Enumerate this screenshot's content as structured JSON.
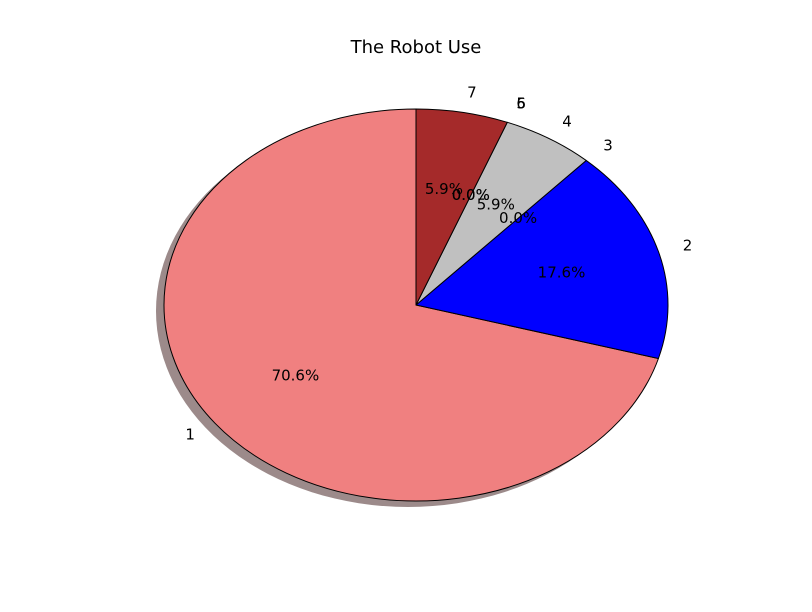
{
  "chart_data": {
    "type": "pie",
    "title": "The Robot Use",
    "categories": [
      "1",
      "2",
      "3",
      "4",
      "5",
      "6",
      "7"
    ],
    "values": [
      70.6,
      17.6,
      0.0,
      5.9,
      0.0,
      0.0,
      5.9
    ],
    "pct_labels": [
      "70.6%",
      "17.6%",
      "0.0%",
      "5.9%",
      "0.0%",
      "0.0%",
      "5.9%"
    ],
    "colors": [
      "#f08080",
      "#0000ff",
      "#0000ff",
      "#c0c0c0",
      "#c0c0c0",
      "#a52a2a",
      "#a52a2a"
    ],
    "shadow_color": "#9c8a8a",
    "edge_color": "#000000",
    "start_angle_deg": 90,
    "direction": "counterclockwise",
    "shadow": true
  }
}
